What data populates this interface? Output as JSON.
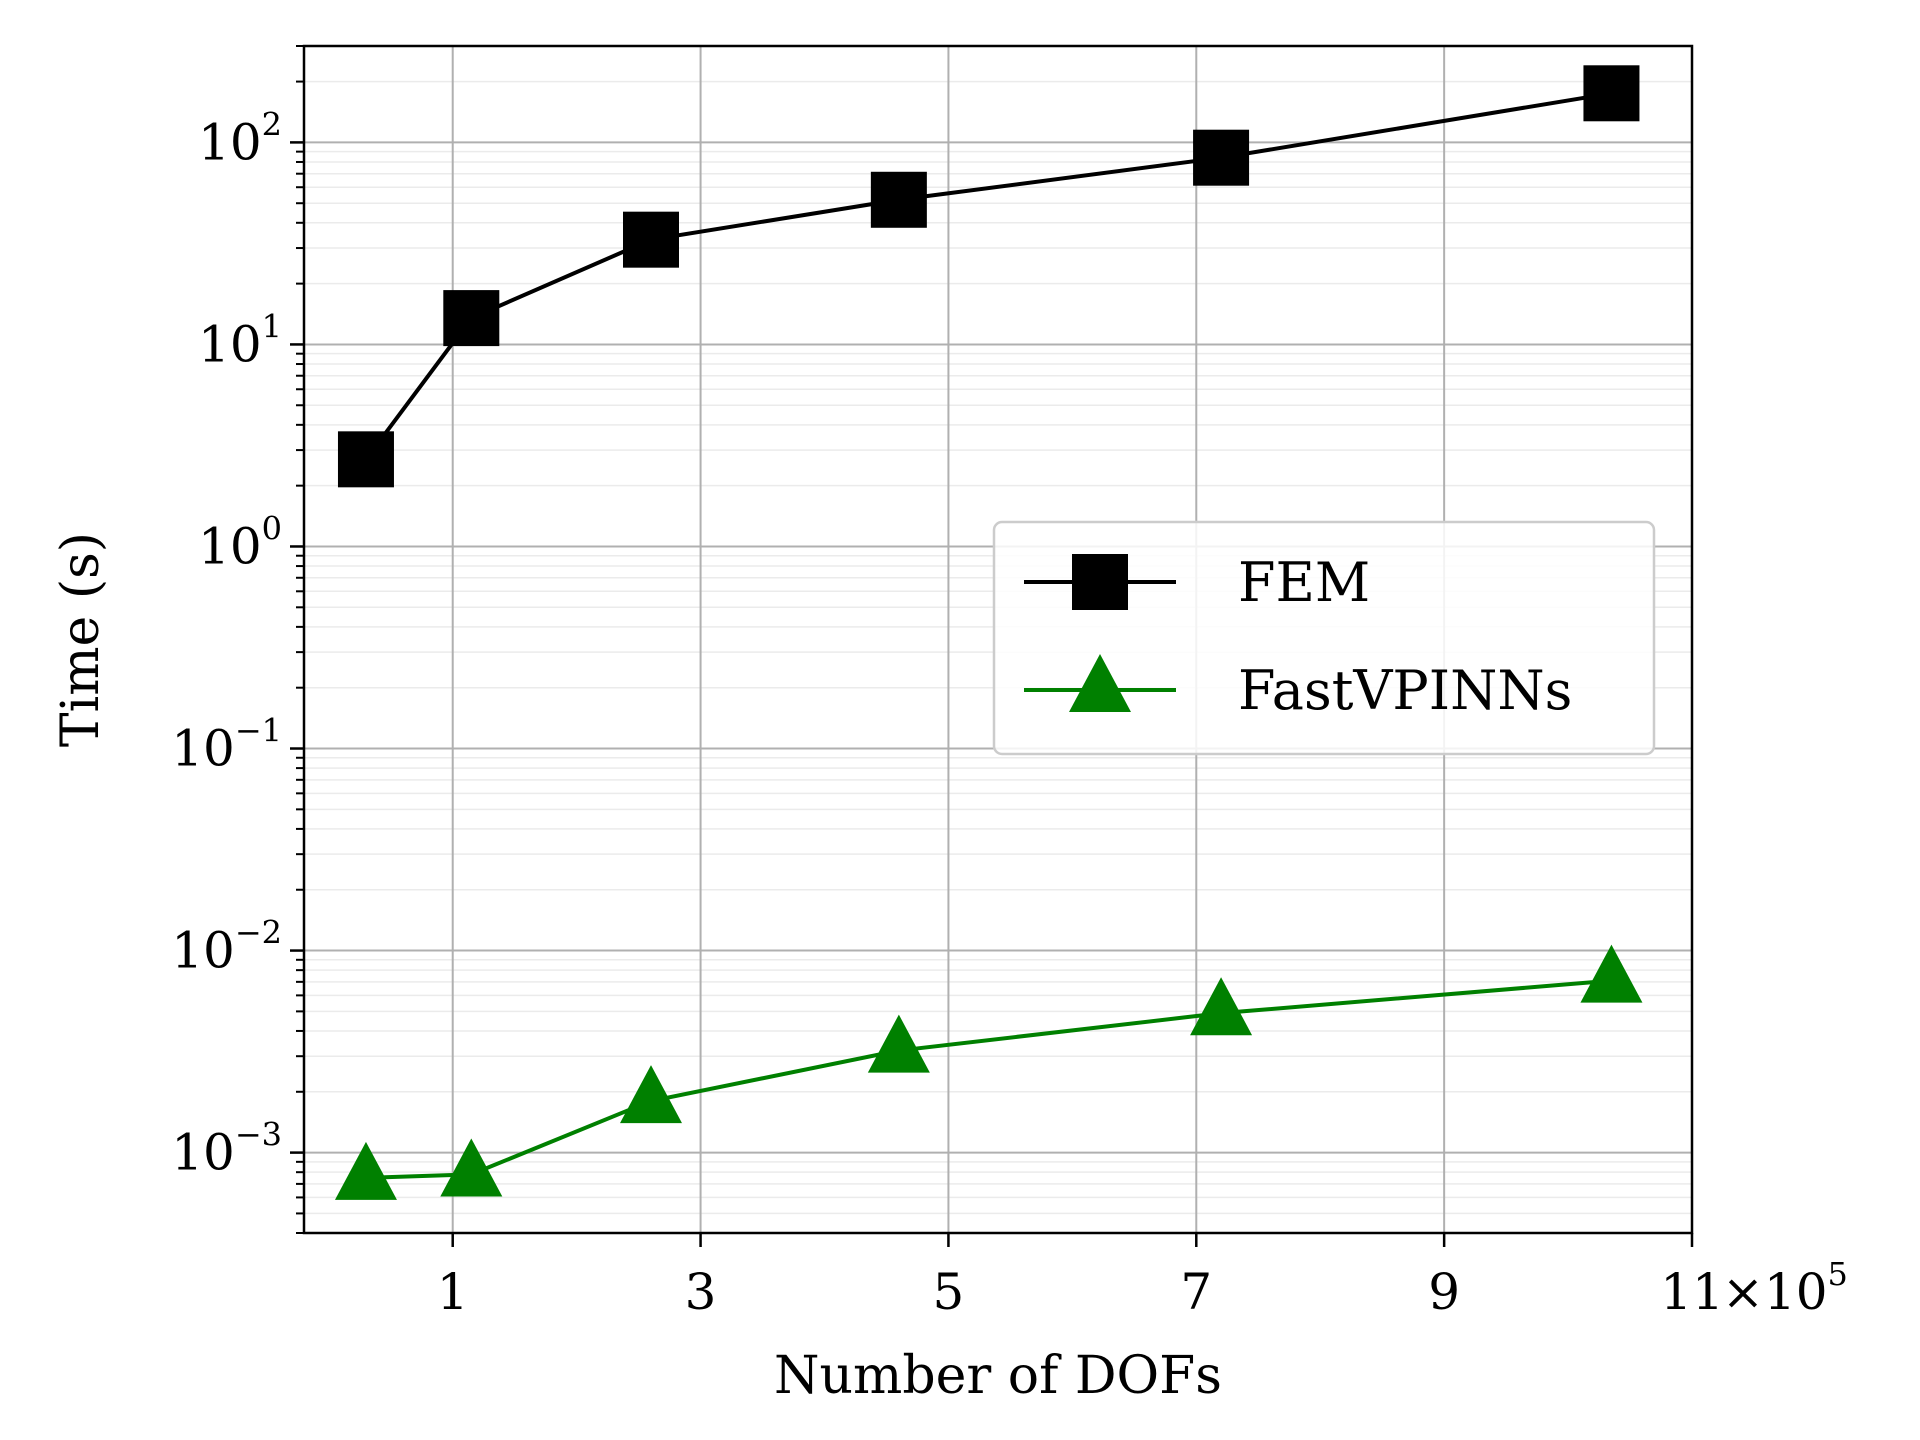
{
  "chart_data": {
    "type": "line",
    "xlabel": "Number of DOFs",
    "ylabel": "Time (s)",
    "x_scale": "linear",
    "y_scale": "log",
    "x_multiplier": "×10⁵",
    "x_ticks": [
      1,
      3,
      5,
      7,
      9,
      11
    ],
    "x_tick_labels": [
      "1",
      "3",
      "5",
      "7",
      "9",
      "11"
    ],
    "xlim": [
      -0.2,
      11
    ],
    "ylim": [
      0.0004,
      300
    ],
    "y_ticks": [
      0.001,
      0.01,
      0.1,
      1,
      10,
      100
    ],
    "y_tick_labels": [
      {
        "base": "10",
        "exp": "−3"
      },
      {
        "base": "10",
        "exp": "−2"
      },
      {
        "base": "10",
        "exp": "−1"
      },
      {
        "base": "10",
        "exp": "0"
      },
      {
        "base": "10",
        "exp": "1"
      },
      {
        "base": "10",
        "exp": "2"
      }
    ],
    "grid": true,
    "legend_position": "center-right",
    "series": [
      {
        "name": "FEM",
        "color": "#000000",
        "marker": "square",
        "x": [
          0.3,
          1.15,
          2.6,
          4.6,
          7.2,
          10.35
        ],
        "y": [
          2.7,
          13.5,
          33,
          52,
          84,
          175
        ]
      },
      {
        "name": "FastVPINNs",
        "color": "#008000",
        "marker": "triangle",
        "x": [
          0.3,
          1.15,
          2.6,
          4.6,
          7.2,
          10.35
        ],
        "y": [
          0.00075,
          0.00078,
          0.0018,
          0.0032,
          0.0049,
          0.0071
        ]
      }
    ]
  }
}
